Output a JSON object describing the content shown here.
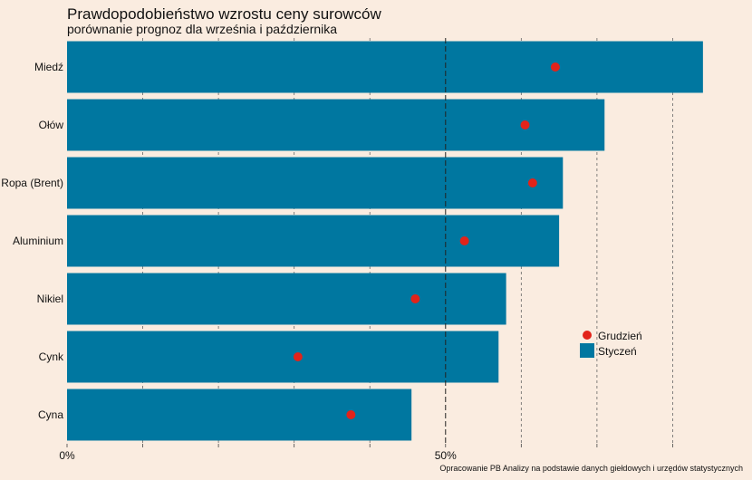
{
  "chart_data": {
    "type": "bar",
    "orientation": "horizontal",
    "title": "Prawdopodobieństwo wzrostu ceny surowców",
    "subtitle": "porównanie prognoz dla września i października",
    "categories": [
      "Miedź",
      "Ołów",
      "Ropa (Brent)",
      "Aluminium",
      "Nikiel",
      "Cynk",
      "Cyna"
    ],
    "series": [
      {
        "name": "Styczeń",
        "kind": "bar",
        "color": "#0077a0",
        "values": [
          84,
          71,
          65.5,
          65,
          58,
          57,
          45.5
        ]
      },
      {
        "name": "Grudzień",
        "kind": "point",
        "color": "#e2231a",
        "values": [
          64.5,
          60.5,
          61.5,
          52.5,
          46,
          30.5,
          37.5
        ]
      }
    ],
    "xlim": [
      0,
      90
    ],
    "x_ticks": [
      {
        "value": 0,
        "label": "0%"
      },
      {
        "value": 50,
        "label": "50%"
      }
    ],
    "gridlines": [
      10,
      20,
      30,
      40,
      50,
      60,
      70,
      80
    ],
    "reference_line": 50,
    "legend_position": "right"
  },
  "caption": "Opracowanie PB Analizy na podstawie danych giełdowych i urzędów statystycznych"
}
